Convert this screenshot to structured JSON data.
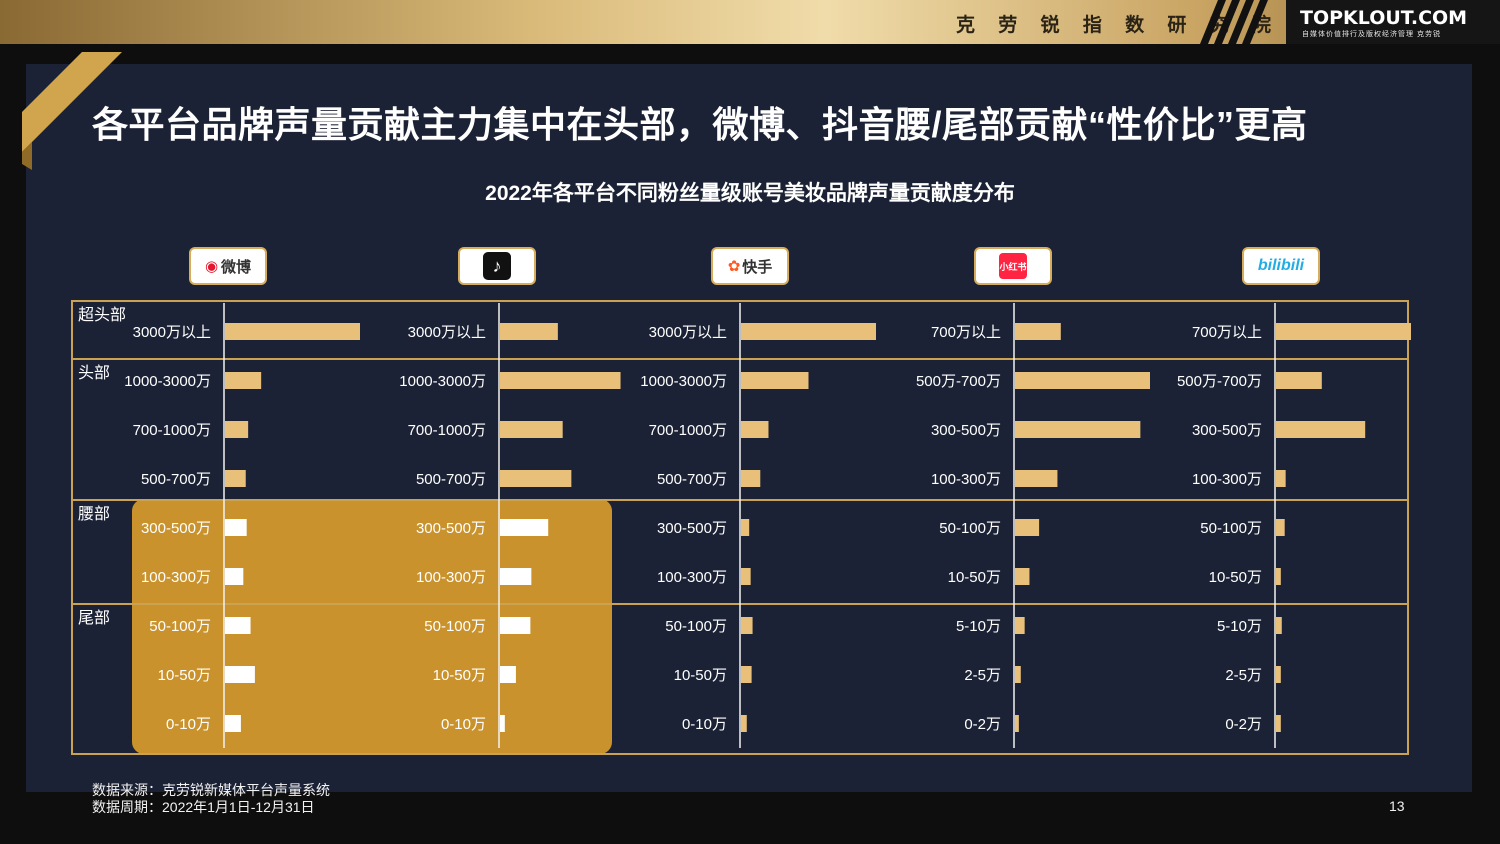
{
  "header": {
    "institute": "克 劳 锐 指 数 研 究 院",
    "brand": "TOPKLOUT.COM",
    "brand_sub": "自媒体价值排行及版权经济管理 克劳锐"
  },
  "slide": {
    "title": "各平台品牌声量贡献主力集中在头部，微博、抖音腰/尾部贡献“性价比”更高",
    "page_number": "13"
  },
  "footer": {
    "source": "数据来源：克劳锐新媒体平台声量系统",
    "period": "数据周期：2022年1月1日-12月31日"
  },
  "colors": {
    "bar": "#e8c07a",
    "bar_highlight": "#ffffff",
    "highlight_bg": "#c9922c",
    "grid_line": "#caa252",
    "panel": "#1c2235"
  },
  "chart_data": {
    "type": "bar",
    "orientation": "horizontal",
    "title": "2022年各平台不同粉丝量级账号美妆品牌声量贡献度分布",
    "tiers": [
      {
        "label": "超头部",
        "rows": 1
      },
      {
        "label": "头部",
        "rows": 3
      },
      {
        "label": "腰部",
        "rows": 2
      },
      {
        "label": "尾部",
        "rows": 3
      }
    ],
    "highlighted": [
      "微博",
      "抖音"
    ],
    "platforms": [
      {
        "name": "微博",
        "icon": "weibo-logo",
        "logo_text": "微博",
        "categories": [
          "3000万以上",
          "1000-3000万",
          "700-1000万",
          "500-700万",
          "300-500万",
          "100-300万",
          "50-100万",
          "10-50万",
          "0-10万"
        ],
        "values": [
          0.28,
          0.075,
          0.048,
          0.043,
          0.045,
          0.038,
          0.053,
          0.062,
          0.033
        ]
      },
      {
        "name": "抖音",
        "icon": "tiktok-logo",
        "logo_text": "♪",
        "categories": [
          "3000万以上",
          "1000-3000万",
          "700-1000万",
          "500-700万",
          "300-500万",
          "100-300万",
          "50-100万",
          "10-50万",
          "0-10万"
        ],
        "values": [
          0.12,
          0.25,
          0.13,
          0.148,
          0.1,
          0.065,
          0.063,
          0.033,
          0.01
        ]
      },
      {
        "name": "快手",
        "icon": "kuaishou-logo",
        "logo_text": "快手",
        "categories": [
          "3000万以上",
          "1000-3000万",
          "700-1000万",
          "500-700万",
          "300-500万",
          "100-300万",
          "50-100万",
          "10-50万",
          "0-10万"
        ],
        "values": [
          0.28,
          0.14,
          0.057,
          0.04,
          0.017,
          0.02,
          0.024,
          0.022,
          0.012
        ]
      },
      {
        "name": "小红书",
        "icon": "xiaohongshu-logo",
        "logo_text": "小红书",
        "categories": [
          "700万以上",
          "500万-700万",
          "300-500万",
          "100-300万",
          "50-100万",
          "10-50万",
          "5-10万",
          "2-5万",
          "0-2万"
        ],
        "values": [
          0.095,
          0.28,
          0.26,
          0.088,
          0.05,
          0.03,
          0.02,
          0.012,
          0.008
        ]
      },
      {
        "name": "哔哩哔哩",
        "icon": "bilibili-logo",
        "logo_text": "bilibili",
        "categories": [
          "700万以上",
          "500万-700万",
          "300-500万",
          "100-300万",
          "50-100万",
          "10-50万",
          "5-10万",
          "2-5万",
          "0-2万"
        ],
        "values": [
          0.28,
          0.095,
          0.185,
          0.02,
          0.018,
          0.01,
          0.012,
          0.01,
          0.01
        ]
      }
    ]
  }
}
